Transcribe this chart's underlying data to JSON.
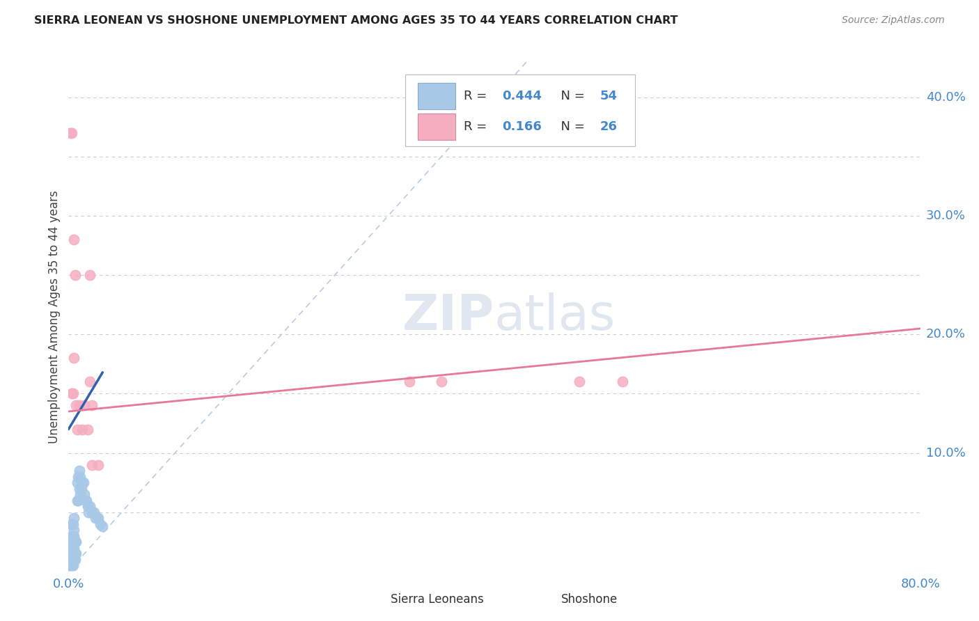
{
  "title": "SIERRA LEONEAN VS SHOSHONE UNEMPLOYMENT AMONG AGES 35 TO 44 YEARS CORRELATION CHART",
  "source": "Source: ZipAtlas.com",
  "ylabel": "Unemployment Among Ages 35 to 44 years",
  "xlim": [
    0.0,
    0.8
  ],
  "ylim": [
    0.0,
    0.43
  ],
  "xticks": [
    0.0,
    0.1,
    0.2,
    0.3,
    0.4,
    0.5,
    0.6,
    0.7,
    0.8
  ],
  "xticklabels": [
    "0.0%",
    "",
    "",
    "",
    "",
    "",
    "",
    "",
    "80.0%"
  ],
  "ytick_positions": [
    0.0,
    0.1,
    0.2,
    0.3,
    0.4
  ],
  "yticklabels": [
    "",
    "10.0%",
    "20.0%",
    "30.0%",
    "40.0%"
  ],
  "sierra_color": "#a8c8e8",
  "shoshone_color": "#f5aec0",
  "sierra_line_color": "#3060b0",
  "shoshone_line_color": "#e87898",
  "diagonal_color": "#b8cce4",
  "watermark_color": "#ccd8e8",
  "background_color": "#ffffff",
  "sierra_x": [
    0.002,
    0.002,
    0.002,
    0.002,
    0.003,
    0.003,
    0.003,
    0.003,
    0.003,
    0.003,
    0.003,
    0.004,
    0.004,
    0.004,
    0.004,
    0.004,
    0.004,
    0.004,
    0.005,
    0.005,
    0.005,
    0.005,
    0.005,
    0.005,
    0.005,
    0.006,
    0.006,
    0.006,
    0.007,
    0.007,
    0.008,
    0.008,
    0.009,
    0.009,
    0.01,
    0.01,
    0.011,
    0.011,
    0.012,
    0.013,
    0.014,
    0.015,
    0.016,
    0.017,
    0.018,
    0.019,
    0.02,
    0.022,
    0.024,
    0.025,
    0.027,
    0.028,
    0.03,
    0.032
  ],
  "sierra_y": [
    0.005,
    0.01,
    0.015,
    0.02,
    0.005,
    0.01,
    0.015,
    0.02,
    0.025,
    0.03,
    0.04,
    0.005,
    0.01,
    0.015,
    0.02,
    0.025,
    0.03,
    0.04,
    0.01,
    0.015,
    0.02,
    0.025,
    0.03,
    0.035,
    0.045,
    0.01,
    0.015,
    0.025,
    0.015,
    0.025,
    0.06,
    0.075,
    0.06,
    0.08,
    0.07,
    0.085,
    0.065,
    0.08,
    0.07,
    0.075,
    0.075,
    0.065,
    0.06,
    0.06,
    0.055,
    0.05,
    0.055,
    0.05,
    0.05,
    0.045,
    0.045,
    0.045,
    0.04,
    0.038
  ],
  "shoshone_x": [
    0.002,
    0.003,
    0.003,
    0.004,
    0.005,
    0.005,
    0.006,
    0.007,
    0.008,
    0.01,
    0.013,
    0.015,
    0.018,
    0.02,
    0.022,
    0.028,
    0.02,
    0.022,
    0.32,
    0.35,
    0.48,
    0.52
  ],
  "shoshone_y": [
    0.37,
    0.37,
    0.15,
    0.15,
    0.18,
    0.28,
    0.25,
    0.14,
    0.12,
    0.14,
    0.12,
    0.14,
    0.12,
    0.16,
    0.14,
    0.09,
    0.25,
    0.09,
    0.16,
    0.16,
    0.16,
    0.16
  ],
  "sierra_line_x": [
    0.0,
    0.032
  ],
  "sierra_line_y": [
    0.12,
    0.168
  ],
  "shoshone_line_x": [
    0.0,
    0.8
  ],
  "shoshone_line_y": [
    0.135,
    0.205
  ],
  "diag_line_x": [
    0.0,
    0.43
  ],
  "diag_line_y": [
    0.0,
    0.43
  ]
}
